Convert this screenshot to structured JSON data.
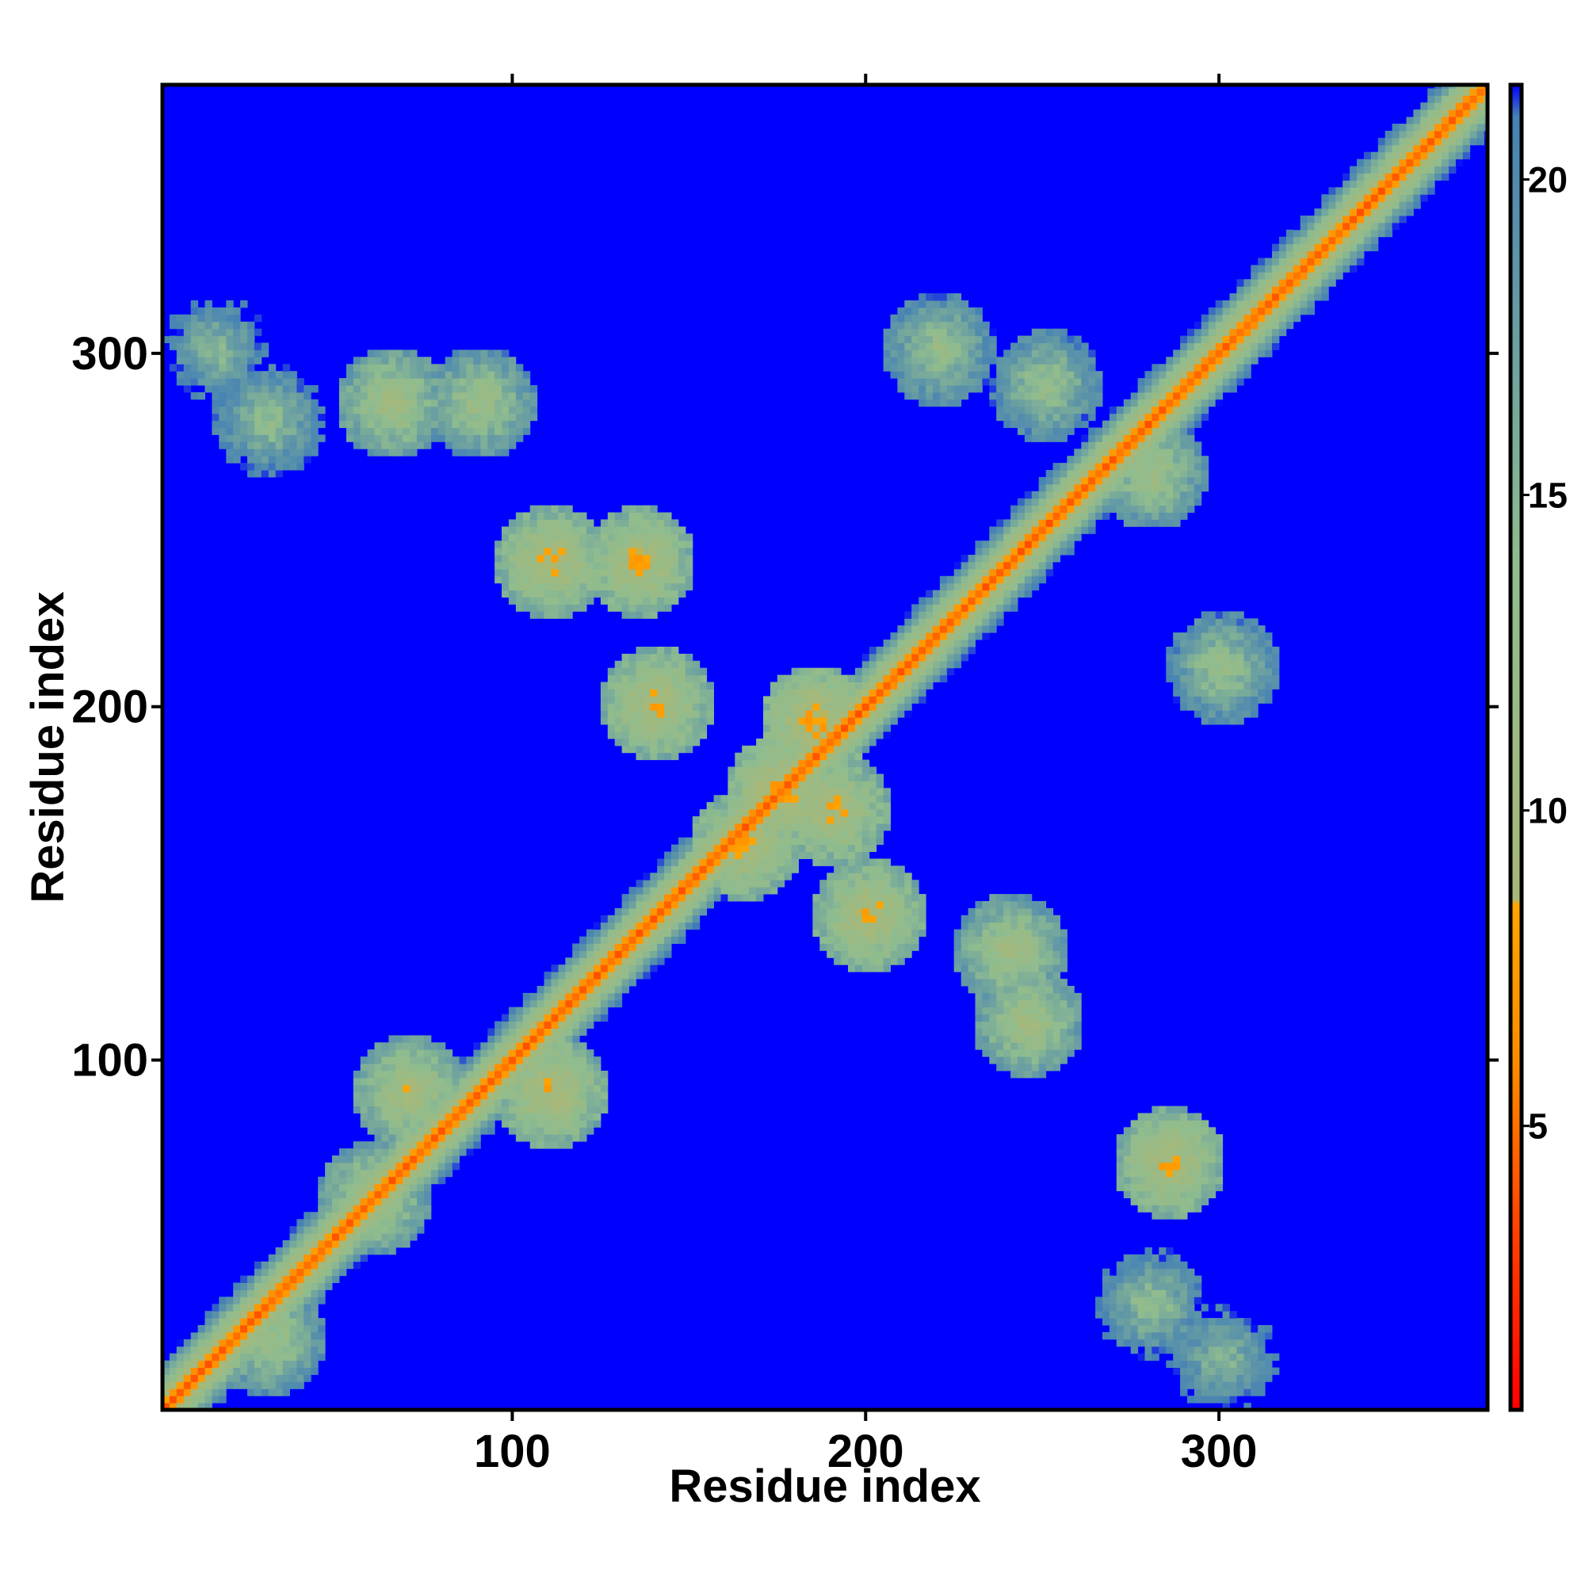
{
  "chart_data": {
    "type": "heatmap",
    "title": "",
    "xlabel": "Residue index",
    "ylabel": "Residue index",
    "xlim": [
      1,
      376
    ],
    "ylim": [
      1,
      376
    ],
    "x_ticks": [
      100,
      200,
      300
    ],
    "y_ticks": [
      100,
      200,
      300
    ],
    "grid": false,
    "legend": "colorbar-right",
    "colorbar": {
      "range": [
        0.5,
        21.5
      ],
      "ticks": [
        5,
        10,
        15,
        20
      ],
      "colors": {
        "low": "#ff0000",
        "mid_low": "#ff8c00",
        "mid": "#8fbc8f",
        "high": "#4682b4",
        "background": "#0000ff"
      },
      "stops": [
        {
          "value": 0.5,
          "color": "#ff0000"
        },
        {
          "value": 3.5,
          "color": "#ff4500"
        },
        {
          "value": 6.0,
          "color": "#ff8c00"
        },
        {
          "value": 8.5,
          "color": "#ffa500"
        },
        {
          "value": 8.6,
          "color": "#a8b878"
        },
        {
          "value": 14.0,
          "color": "#8fbc8f"
        },
        {
          "value": 21.0,
          "color": "#4682b4"
        },
        {
          "value": 21.5,
          "color": "#0000ff"
        }
      ]
    },
    "matrix_description_points": {
      "diagonal_distance": 3.8,
      "contact_regions": [
        {
          "x": 15,
          "y": 300,
          "value": 12
        },
        {
          "x": 30,
          "y": 280,
          "value": 11
        },
        {
          "x": 65,
          "y": 285,
          "value": 8
        },
        {
          "x": 90,
          "y": 285,
          "value": 9
        },
        {
          "x": 110,
          "y": 240,
          "value": 6
        },
        {
          "x": 135,
          "y": 240,
          "value": 6
        },
        {
          "x": 140,
          "y": 200,
          "value": 6
        },
        {
          "x": 175,
          "y": 175,
          "value": 5
        },
        {
          "x": 185,
          "y": 195,
          "value": 5
        },
        {
          "x": 190,
          "y": 170,
          "value": 6
        },
        {
          "x": 165,
          "y": 160,
          "value": 6
        },
        {
          "x": 220,
          "y": 300,
          "value": 10
        },
        {
          "x": 250,
          "y": 290,
          "value": 10
        },
        {
          "x": 280,
          "y": 265,
          "value": 9
        },
        {
          "x": 300,
          "y": 210,
          "value": 10
        },
        {
          "x": 245,
          "y": 110,
          "value": 8
        },
        {
          "x": 240,
          "y": 130,
          "value": 8
        },
        {
          "x": 285,
          "y": 70,
          "value": 6
        },
        {
          "x": 280,
          "y": 30,
          "value": 11
        },
        {
          "x": 300,
          "y": 15,
          "value": 12
        },
        {
          "x": 70,
          "y": 90,
          "value": 7
        },
        {
          "x": 60,
          "y": 60,
          "value": 8
        },
        {
          "x": 30,
          "y": 20,
          "value": 9
        },
        {
          "x": 110,
          "y": 90,
          "value": 6
        },
        {
          "x": 200,
          "y": 140,
          "value": 6
        }
      ]
    }
  }
}
